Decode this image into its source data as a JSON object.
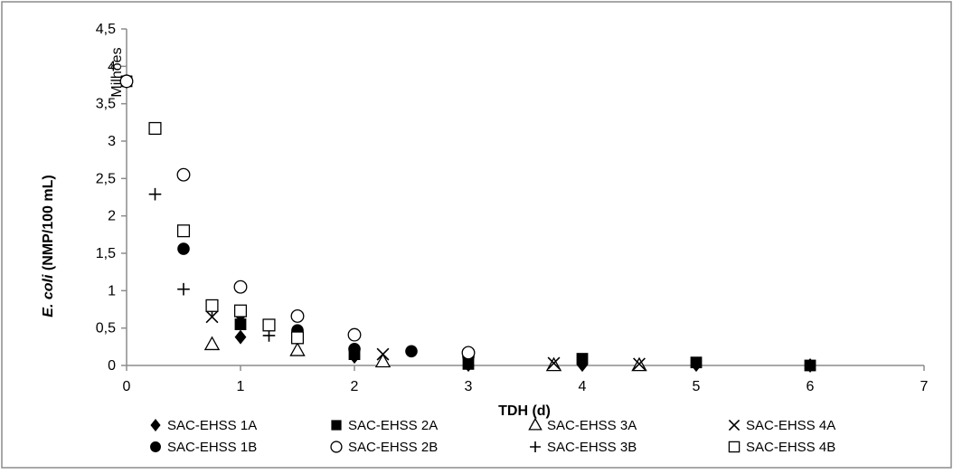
{
  "chart_data": {
    "type": "scatter",
    "title": "",
    "xlabel": "TDH (d)",
    "ylabel_italic": "E. coli",
    "ylabel_rest": " (NMP/100 mL)",
    "y_unit_label": "Milhões",
    "xlim": [
      0,
      7
    ],
    "ylim": [
      0,
      4.5
    ],
    "x_ticks": [
      "0",
      "1",
      "2",
      "3",
      "4",
      "5",
      "6",
      "7"
    ],
    "y_ticks": [
      "0",
      "0,5",
      "1",
      "1,5",
      "2",
      "2,5",
      "3",
      "3,5",
      "4",
      "4,5"
    ],
    "grid": false,
    "legend_position": "bottom",
    "series": [
      {
        "name": "SAC-EHSS 1A",
        "marker": "diamond-filled",
        "x": [
          0,
          1,
          2,
          3,
          4,
          5,
          6
        ],
        "y": [
          3.8,
          0.38,
          0.12,
          0.01,
          0.01,
          0.01,
          0.0
        ]
      },
      {
        "name": "SAC-EHSS 2A",
        "marker": "square-filled",
        "x": [
          0,
          1,
          2,
          3,
          4,
          5,
          6
        ],
        "y": [
          3.8,
          0.55,
          0.15,
          0.02,
          0.09,
          0.04,
          0.0
        ]
      },
      {
        "name": "SAC-EHSS 3A",
        "marker": "triangle-open",
        "x": [
          0.75,
          1.5,
          2.25,
          3.75,
          4.5
        ],
        "y": [
          0.28,
          0.2,
          0.05,
          0.0,
          0.0
        ]
      },
      {
        "name": "SAC-EHSS 4A",
        "marker": "x",
        "x": [
          0.75,
          1.5,
          2.25,
          3.75,
          4.5
        ],
        "y": [
          0.65,
          0.4,
          0.15,
          0.03,
          0.02
        ]
      },
      {
        "name": "SAC-EHSS 1B",
        "marker": "circle-filled",
        "x": [
          0,
          0.5,
          1,
          1.5,
          2,
          2.5,
          3
        ],
        "y": [
          3.8,
          1.56,
          0.7,
          0.47,
          0.22,
          0.19,
          0.12
        ]
      },
      {
        "name": "SAC-EHSS 2B",
        "marker": "circle-open",
        "x": [
          0,
          0.5,
          1,
          1.5,
          2,
          3
        ],
        "y": [
          3.8,
          2.55,
          1.05,
          0.66,
          0.41,
          0.17
        ]
      },
      {
        "name": "SAC-EHSS 3B",
        "marker": "plus",
        "x": [
          0.25,
          0.5,
          0.75,
          1.25
        ],
        "y": [
          2.29,
          1.02,
          0.75,
          0.4
        ]
      },
      {
        "name": "SAC-EHSS 4B",
        "marker": "square-open",
        "x": [
          0.25,
          0.5,
          0.75,
          1,
          1.25,
          1.5
        ],
        "y": [
          3.17,
          1.8,
          0.8,
          0.73,
          0.54,
          0.37
        ]
      }
    ]
  }
}
